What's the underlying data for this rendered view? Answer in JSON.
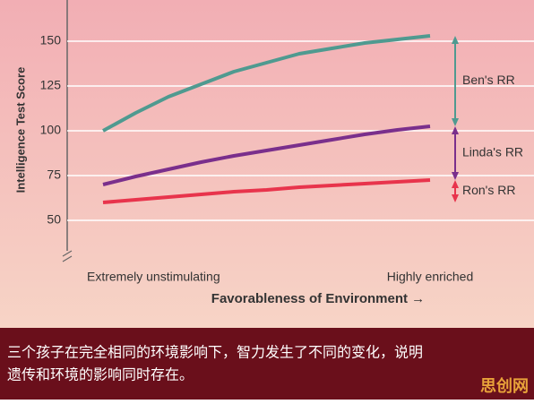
{
  "chart_data": {
    "type": "line",
    "y_label": "Intelligence Test Score",
    "x_label": "Favorableness of Environment →",
    "x": [
      0,
      1,
      2,
      3,
      4,
      5,
      6,
      7,
      8,
      9,
      10
    ],
    "xlim": [
      0,
      10
    ],
    "xticks": [
      {
        "value": 0,
        "label": "Extremely unstimulating"
      },
      {
        "value": 10,
        "label": "Highly enriched"
      }
    ],
    "ylim": [
      30,
      170
    ],
    "yticks": [
      50,
      75,
      100,
      125,
      150
    ],
    "grid": true,
    "series": [
      {
        "name": "Ben",
        "color": "#4f9a90",
        "values": [
          100,
          110,
          119,
          126,
          133,
          138,
          143,
          146,
          149,
          151,
          153
        ]
      },
      {
        "name": "Linda",
        "color": "#7a2f8c",
        "values": [
          70,
          74.5,
          78.5,
          82.5,
          86,
          89,
          92,
          95,
          98,
          100.5,
          102.5
        ]
      },
      {
        "name": "Ron",
        "color": "#e8344c",
        "values": [
          60,
          61.5,
          63,
          64.5,
          66,
          67,
          68.5,
          69.5,
          70.5,
          71.5,
          72.5
        ]
      }
    ],
    "annotations": [
      {
        "text": "Ben's RR"
      },
      {
        "text": "Linda's RR"
      },
      {
        "text": "Ron's RR"
      }
    ]
  },
  "caption": {
    "lines": [
      "三个孩子在完全相同的环境影响下，智力发生了不同的变化，说明",
      "遗传和环境的影响同时存在。"
    ],
    "watermark": "思创网"
  }
}
